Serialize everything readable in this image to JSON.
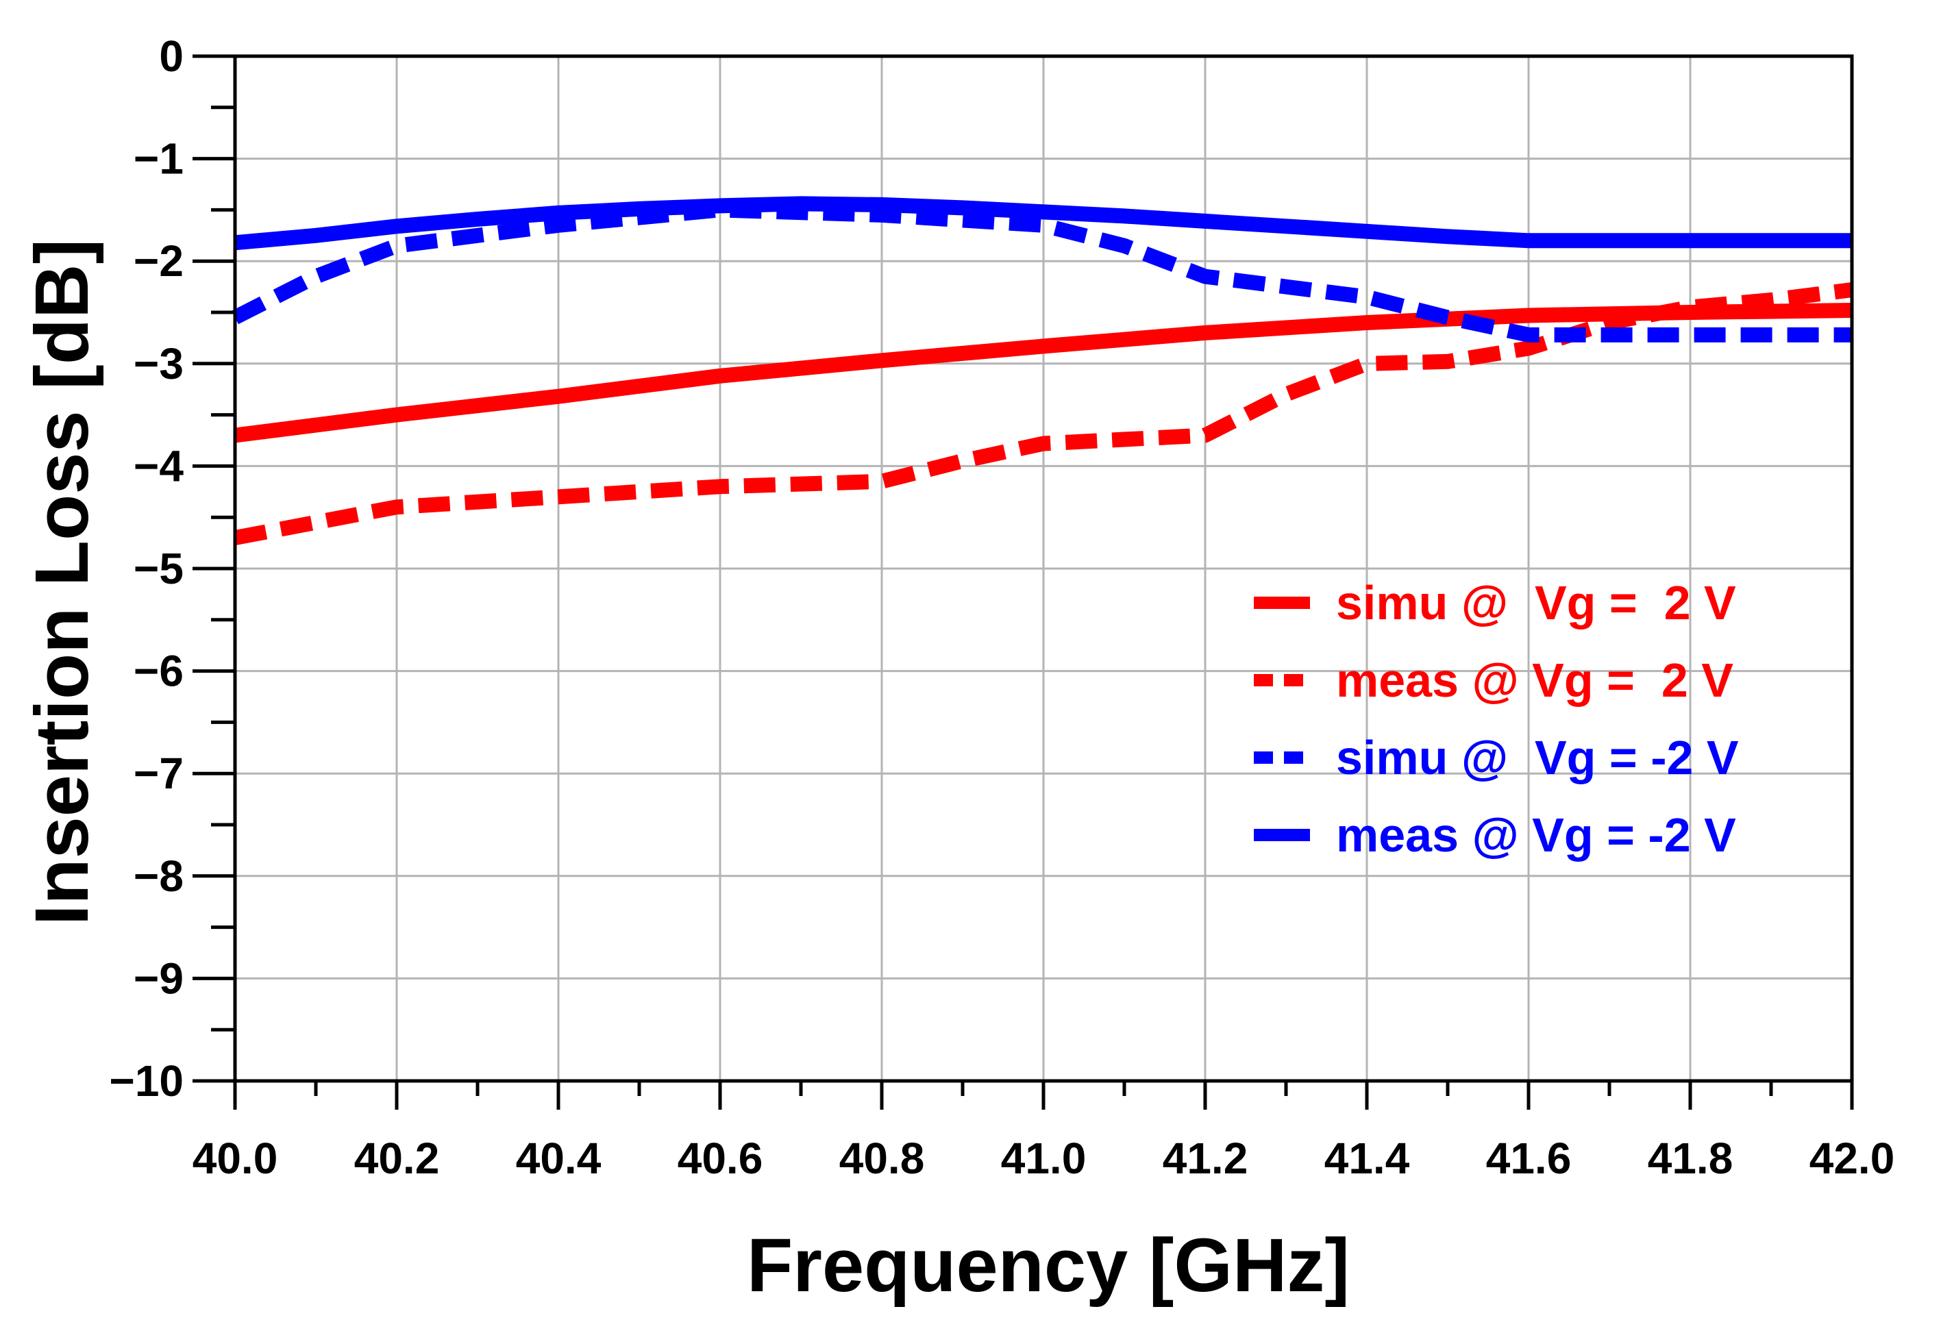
{
  "chart_data": {
    "type": "line",
    "title": "",
    "xlabel": "Frequency [GHz]",
    "ylabel": "Insertion Loss [dB]",
    "xlim": [
      40.0,
      42.0
    ],
    "ylim": [
      -10,
      0
    ],
    "grid": true,
    "x_ticks": [
      40.0,
      40.2,
      40.4,
      40.6,
      40.8,
      41.0,
      41.2,
      41.4,
      41.6,
      41.8,
      42.0
    ],
    "x_tick_labels": [
      "40.0",
      "40.2",
      "40.4",
      "40.6",
      "40.8",
      "41.0",
      "41.2",
      "41.4",
      "41.6",
      "41.8",
      "42.0"
    ],
    "y_ticks": [
      0,
      -1,
      -2,
      -3,
      -4,
      -5,
      -6,
      -7,
      -8,
      -9,
      -10
    ],
    "y_tick_labels": [
      "0",
      "−1",
      "−2",
      "−3",
      "−4",
      "−5",
      "−6",
      "−7",
      "−8",
      "−9",
      "−10"
    ],
    "legend_position": "right",
    "series": [
      {
        "name": "simu @  Vg =  2 V",
        "color": "#ff0000",
        "style": "solid",
        "x": [
          40.0,
          40.2,
          40.4,
          40.6,
          40.8,
          41.0,
          41.2,
          41.4,
          41.6,
          41.8,
          42.0
        ],
        "y": [
          -3.7,
          -3.5,
          -3.32,
          -3.12,
          -2.97,
          -2.83,
          -2.7,
          -2.6,
          -2.53,
          -2.5,
          -2.48
        ]
      },
      {
        "name": "meas @ Vg =  2 V",
        "color": "#ff0000",
        "style": "dashed",
        "x": [
          40.0,
          40.1,
          40.2,
          40.4,
          40.6,
          40.8,
          40.9,
          41.0,
          41.2,
          41.3,
          41.4,
          41.5,
          41.6,
          41.7,
          41.8,
          41.9,
          42.0
        ],
        "y": [
          -4.7,
          -4.55,
          -4.4,
          -4.3,
          -4.2,
          -4.15,
          -3.95,
          -3.78,
          -3.7,
          -3.3,
          -3.0,
          -2.98,
          -2.85,
          -2.6,
          -2.45,
          -2.38,
          -2.28
        ]
      },
      {
        "name": "simu @  Vg = -2 V",
        "color": "#0000ff",
        "style": "dashed",
        "x": [
          40.0,
          40.1,
          40.2,
          40.4,
          40.6,
          40.8,
          41.0,
          41.1,
          41.2,
          41.3,
          41.4,
          41.5,
          41.6,
          41.8,
          42.0
        ],
        "y": [
          -2.55,
          -2.15,
          -1.85,
          -1.65,
          -1.5,
          -1.55,
          -1.65,
          -1.85,
          -2.15,
          -2.25,
          -2.35,
          -2.55,
          -2.72,
          -2.72,
          -2.72
        ]
      },
      {
        "name": "meas @ Vg = -2 V",
        "color": "#0000ff",
        "style": "solid",
        "x": [
          40.0,
          40.1,
          40.2,
          40.3,
          40.4,
          40.5,
          40.6,
          40.7,
          40.8,
          40.9,
          41.0,
          41.1,
          41.2,
          41.3,
          41.4,
          41.5,
          41.6,
          41.8,
          42.0
        ],
        "y": [
          -1.82,
          -1.75,
          -1.66,
          -1.59,
          -1.53,
          -1.49,
          -1.46,
          -1.44,
          -1.45,
          -1.48,
          -1.52,
          -1.56,
          -1.61,
          -1.66,
          -1.71,
          -1.76,
          -1.8,
          -1.8,
          -1.8
        ]
      }
    ]
  }
}
